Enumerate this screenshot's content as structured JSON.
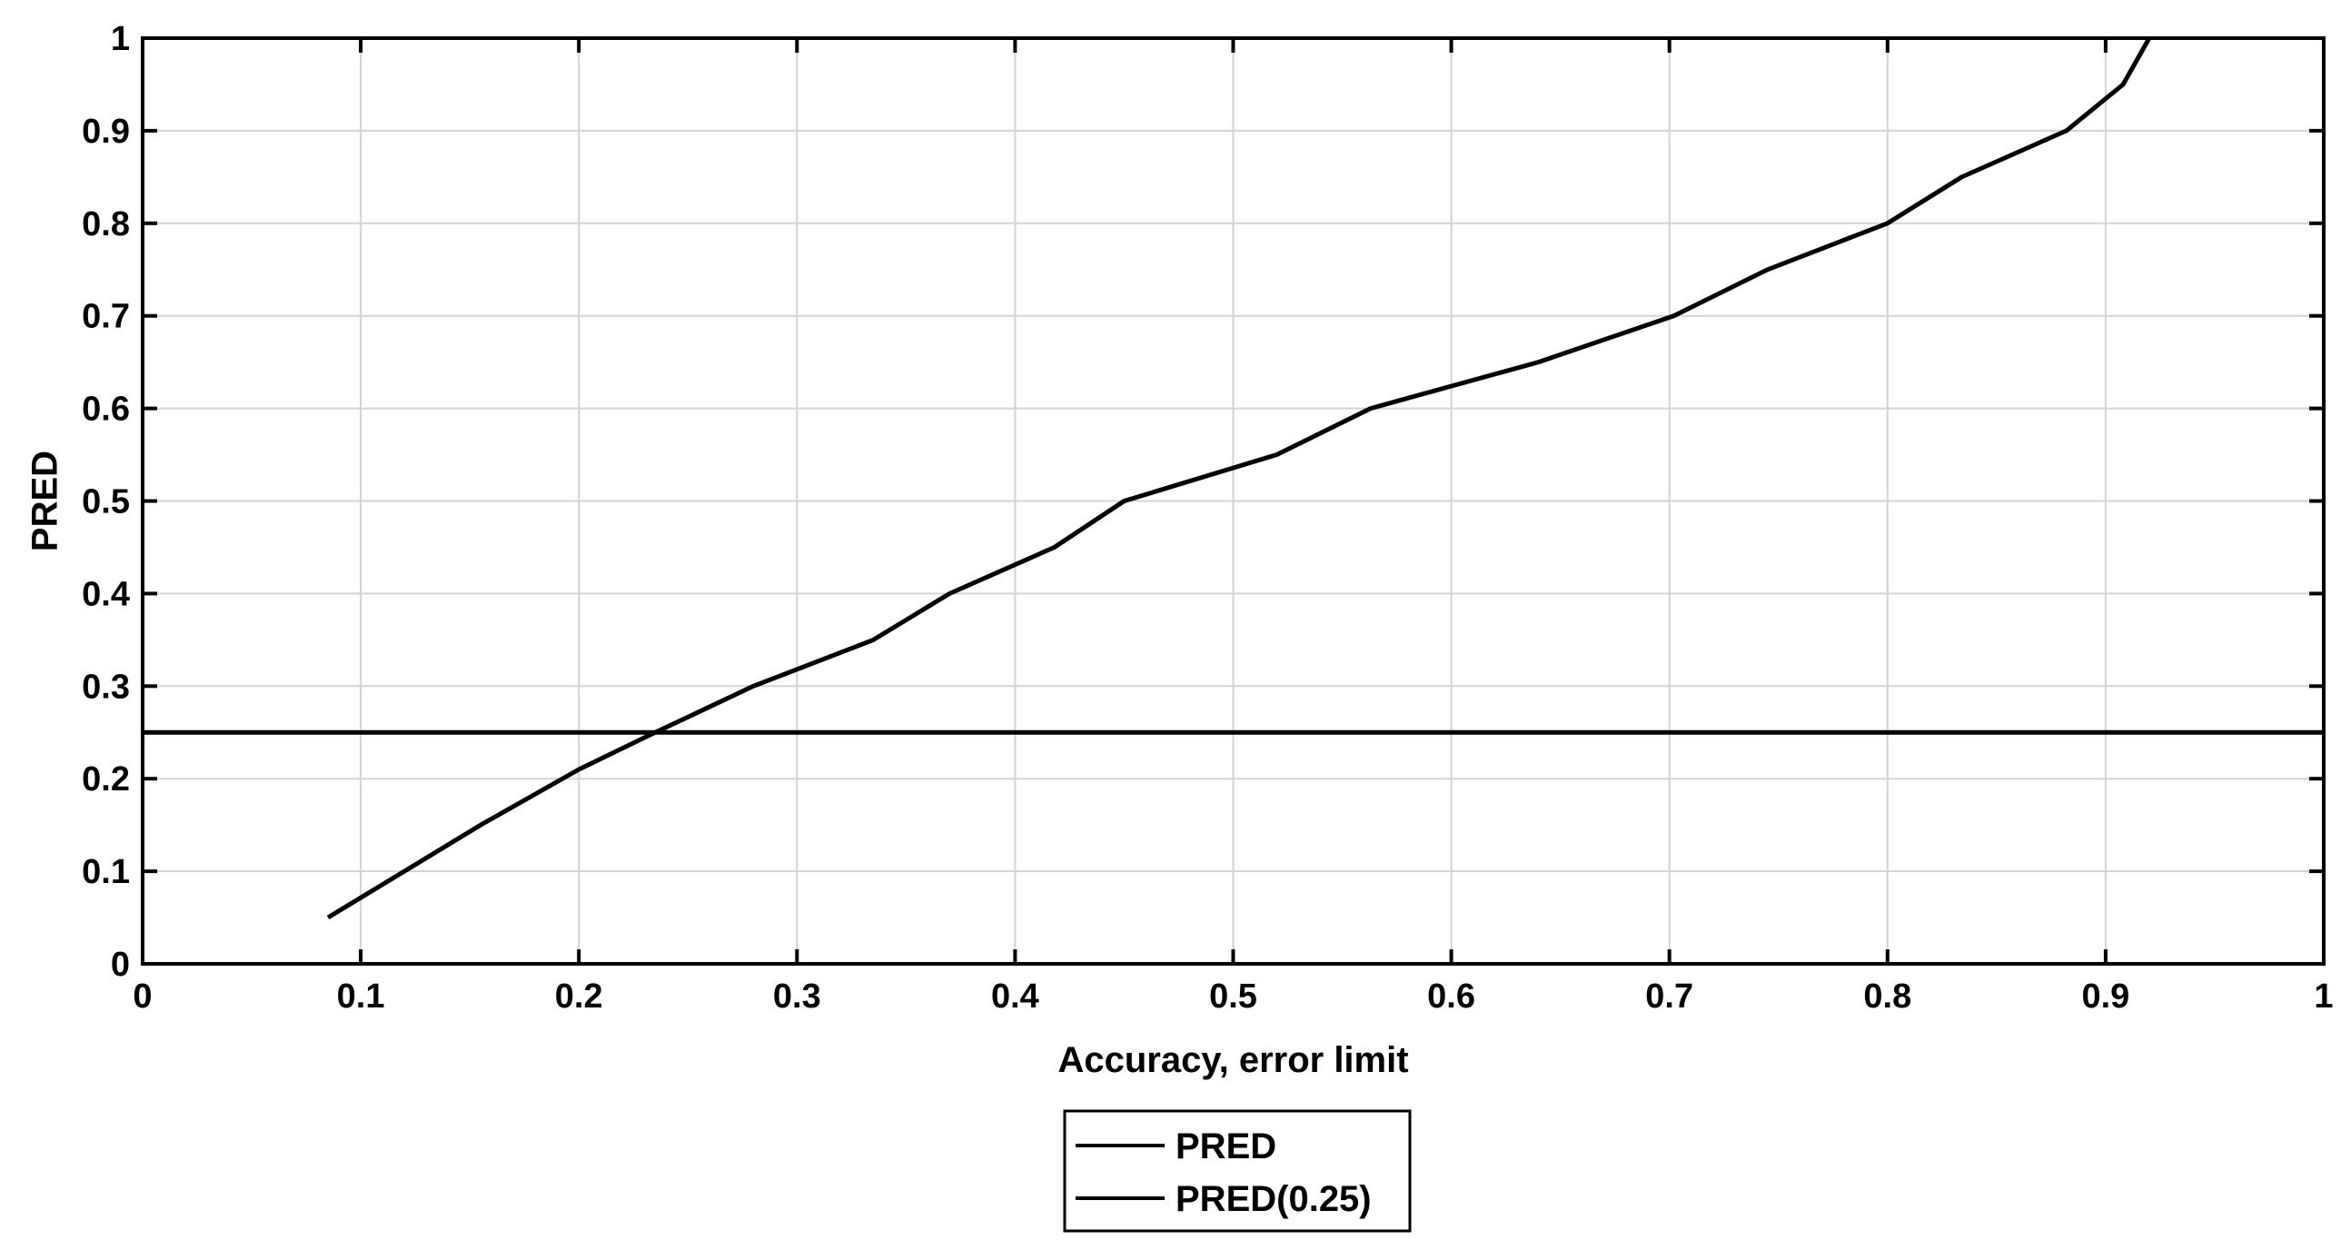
{
  "chart_data": {
    "type": "line",
    "title": "",
    "xlabel": "Accuracy, error limit",
    "ylabel": "PRED",
    "xlim": [
      0,
      1
    ],
    "ylim": [
      0,
      1
    ],
    "x_ticks": [
      0,
      0.1,
      0.2,
      0.3,
      0.4,
      0.5,
      0.6,
      0.7,
      0.8,
      0.9,
      1
    ],
    "x_tick_labels": [
      "0",
      "0.1",
      "0.2",
      "0.3",
      "0.4",
      "0.5",
      "0.6",
      "0.7",
      "0.8",
      "0.9",
      "1"
    ],
    "y_ticks": [
      0,
      0.1,
      0.2,
      0.3,
      0.4,
      0.5,
      0.6,
      0.7,
      0.8,
      0.9,
      1
    ],
    "y_tick_labels": [
      "0",
      "0.1",
      "0.2",
      "0.3",
      "0.4",
      "0.5",
      "0.6",
      "0.7",
      "0.8",
      "0.9",
      "1"
    ],
    "grid": true,
    "legend_position": "bottom-center",
    "colors": {
      "line": "#000000",
      "grid": "#d3d3d3",
      "axes": "#000000",
      "background": "#ffffff"
    },
    "series": [
      {
        "name": "PRED",
        "x": [
          0.085,
          0.12,
          0.155,
          0.2,
          0.235,
          0.28,
          0.335,
          0.37,
          0.418,
          0.45,
          0.52,
          0.563,
          0.64,
          0.702,
          0.745,
          0.8,
          0.834,
          0.882,
          0.908,
          0.92
        ],
        "y": [
          0.05,
          0.1,
          0.15,
          0.21,
          0.25,
          0.3,
          0.35,
          0.4,
          0.45,
          0.5,
          0.55,
          0.6,
          0.65,
          0.7,
          0.75,
          0.8,
          0.85,
          0.9,
          0.95,
          1.0
        ]
      },
      {
        "name": "PRED(0.25)",
        "x": [
          0,
          1
        ],
        "y": [
          0.25,
          0.25
        ]
      }
    ]
  }
}
